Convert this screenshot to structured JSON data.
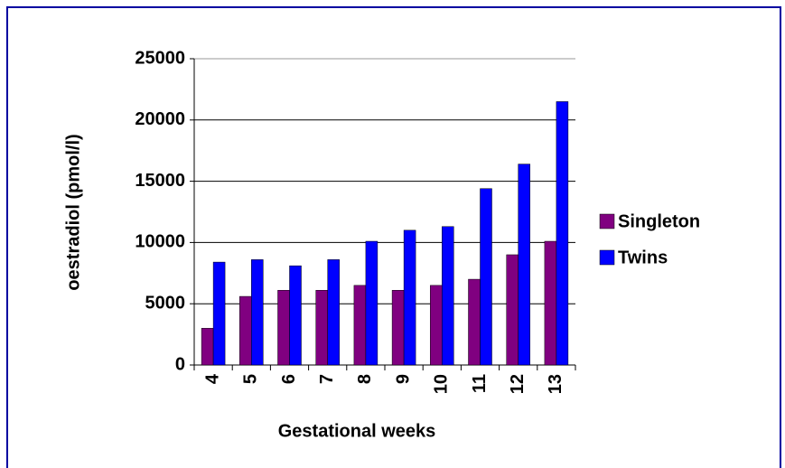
{
  "chart_data": {
    "type": "bar",
    "x_label": "Gestational weeks",
    "y_label": "oestradiol (pmol/l)",
    "categories": [
      "4",
      "5",
      "6",
      "7",
      "8",
      "9",
      "10",
      "11",
      "12",
      "13"
    ],
    "series": [
      {
        "name": "Singleton",
        "color": "#800080",
        "values": [
          3000,
          5600,
          6100,
          6100,
          6500,
          6100,
          6500,
          7000,
          9000,
          10100
        ]
      },
      {
        "name": "Twins",
        "color": "#0000ff",
        "values": [
          8400,
          8600,
          8100,
          8600,
          10100,
          11000,
          11300,
          14400,
          16400,
          21500
        ]
      }
    ],
    "ylim": [
      0,
      25000
    ],
    "yticks": [
      0,
      5000,
      10000,
      15000,
      20000,
      25000
    ],
    "grid": true,
    "legend": "right"
  }
}
